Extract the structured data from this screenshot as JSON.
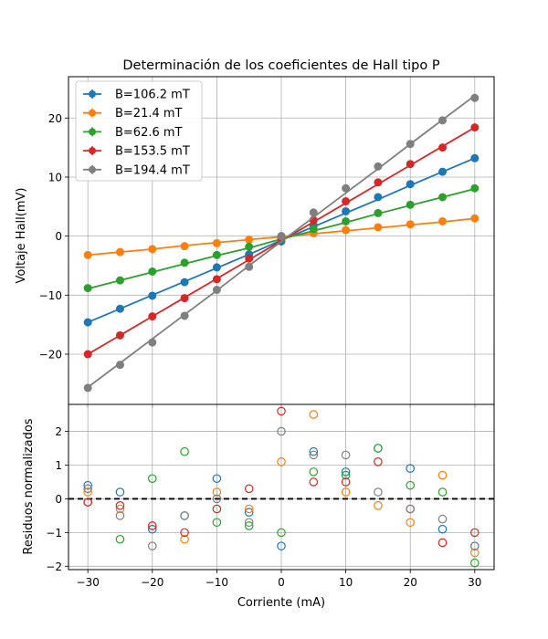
{
  "chart_data": [
    {
      "type": "scatter",
      "title": "Determinación de los coeficientes de Hall tipo P",
      "xlabel": "",
      "ylabel": "Voltaje Hall(mV)",
      "xlim": [
        -33,
        33
      ],
      "ylim": [
        -28.5,
        27
      ],
      "xticks": [
        -30,
        -20,
        -10,
        0,
        10,
        20,
        30
      ],
      "yticks": [
        -20,
        -10,
        0,
        10,
        20
      ],
      "ytick_labels": [
        "−20",
        "−10",
        "0",
        "10",
        "20"
      ],
      "grid": true,
      "legend_position": "top-left",
      "x": [
        -30,
        -25,
        -20,
        -15,
        -10,
        -5,
        0,
        5,
        10,
        15,
        20,
        25,
        30
      ],
      "series": [
        {
          "name": "B=106.2 mT",
          "color": "#1f77b4",
          "values": [
            -14.6,
            -12.3,
            -10.1,
            -7.8,
            -5.3,
            -3.1,
            -0.9,
            1.8,
            4.2,
            6.6,
            8.8,
            10.9,
            13.2
          ],
          "fit": [
            -14.6,
            -12.3,
            -10.0,
            -7.7,
            -5.4,
            -3.1,
            -0.7,
            1.6,
            3.9,
            6.2,
            8.6,
            10.9,
            13.2
          ]
        },
        {
          "name": "B=21.4 mT",
          "color": "#ff7f0e",
          "values": [
            -3.2,
            -2.7,
            -2.2,
            -1.7,
            -1.2,
            -0.6,
            0.0,
            0.5,
            1.0,
            1.5,
            2.0,
            2.5,
            3.0
          ],
          "fit": [
            -3.2,
            -2.7,
            -2.2,
            -1.6,
            -1.1,
            -0.6,
            -0.1,
            0.4,
            0.9,
            1.4,
            1.9,
            2.4,
            3.0
          ]
        },
        {
          "name": "B=62.6 mT",
          "color": "#2ca02c",
          "values": [
            -8.8,
            -7.5,
            -6.0,
            -4.5,
            -3.2,
            -1.8,
            -0.5,
            1.2,
            2.5,
            3.9,
            5.3,
            6.6,
            8.1
          ],
          "fit": [
            -8.9,
            -7.5,
            -6.1,
            -4.7,
            -3.3,
            -2.0,
            -0.5,
            0.9,
            2.3,
            3.8,
            5.2,
            6.6,
            8.0
          ]
        },
        {
          "name": "B=153.5 mT",
          "color": "#d62728",
          "values": [
            -20.0,
            -16.8,
            -13.6,
            -10.5,
            -7.3,
            -3.8,
            -0.3,
            2.7,
            5.9,
            9.1,
            12.2,
            15.0,
            18.4
          ],
          "fit": [
            -20.0,
            -16.8,
            -13.6,
            -10.4,
            -7.2,
            -4.0,
            -0.8,
            2.4,
            5.6,
            8.8,
            12.0,
            15.2,
            18.4
          ]
        },
        {
          "name": "B=194.4 mT",
          "color": "#7f7f7f",
          "values": [
            -25.7,
            -21.8,
            -18.0,
            -13.5,
            -9.1,
            -5.2,
            0.0,
            4.0,
            8.1,
            11.8,
            15.6,
            19.6,
            23.4
          ],
          "fit": [
            -25.6,
            -21.5,
            -17.4,
            -13.3,
            -9.2,
            -5.0,
            -0.9,
            3.2,
            7.3,
            11.4,
            15.6,
            19.7,
            23.8
          ]
        }
      ]
    },
    {
      "type": "scatter",
      "title": "",
      "xlabel": "Corriente (mA)",
      "ylabel": "Residuos normalizados",
      "xlim": [
        -33,
        33
      ],
      "ylim": [
        -2.1,
        2.8
      ],
      "xticks": [
        -30,
        -20,
        -10,
        0,
        10,
        20,
        30
      ],
      "xtick_labels": [
        "−30",
        "−20",
        "−10",
        "0",
        "10",
        "20",
        "30"
      ],
      "yticks": [
        -2,
        -1,
        0,
        1,
        2
      ],
      "ytick_labels": [
        "−2",
        "−1",
        "0",
        "1",
        "2"
      ],
      "grid": true,
      "reference_line": 0,
      "x": [
        -30,
        -25,
        -20,
        -15,
        -10,
        -5,
        0,
        5,
        10,
        15,
        20,
        25,
        30
      ],
      "series": [
        {
          "name": "B=106.2 mT",
          "color": "#1f77b4",
          "values": [
            0.4,
            0.2,
            -0.9,
            -0.5,
            0.6,
            -0.4,
            -1.4,
            1.4,
            0.8,
            1.5,
            0.9,
            -0.9,
            -1.4
          ]
        },
        {
          "name": "B=21.4 mT",
          "color": "#ff7f0e",
          "values": [
            0.2,
            -0.3,
            -0.8,
            -1.2,
            0.2,
            -0.3,
            1.1,
            2.5,
            0.2,
            -0.2,
            -0.7,
            0.7,
            -1.6
          ]
        },
        {
          "name": "B=62.6 mT",
          "color": "#2ca02c",
          "values": [
            -0.1,
            -1.2,
            0.6,
            1.4,
            -0.7,
            -0.8,
            -1.0,
            0.8,
            0.7,
            1.5,
            0.4,
            0.2,
            -1.9
          ]
        },
        {
          "name": "B=153.5 mT",
          "color": "#d62728",
          "values": [
            -0.1,
            -0.2,
            -0.8,
            -1.0,
            -0.3,
            0.3,
            2.6,
            0.5,
            0.5,
            1.1,
            -0.3,
            -1.3,
            -1.0
          ]
        },
        {
          "name": "B=194.4 mT",
          "color": "#7f7f7f",
          "values": [
            0.3,
            -0.5,
            -1.4,
            -0.5,
            0.0,
            -0.7,
            2.0,
            1.3,
            1.3,
            0.2,
            -0.3,
            -0.6,
            -1.4
          ]
        }
      ]
    }
  ]
}
